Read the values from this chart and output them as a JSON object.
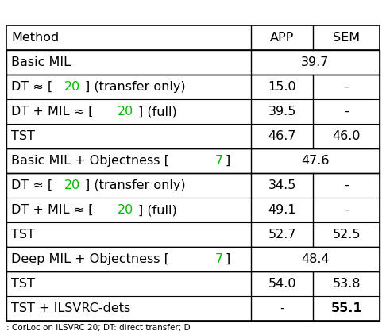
{
  "caption": ": CorLoc on ILSVRC 20; DT: direct transfer; D",
  "header": [
    "Method",
    "APP",
    "SEM"
  ],
  "groups": [
    {
      "header_row": {
        "method_parts": [
          {
            "text": "Basic MIL",
            "color": "black"
          }
        ],
        "app": "39.7",
        "colspan_app": true
      },
      "rows": [
        {
          "method_parts": [
            {
              "text": "DT ≈ [",
              "color": "black"
            },
            {
              "text": "20",
              "color": "green"
            },
            {
              "text": "] (transfer only)",
              "color": "black"
            }
          ],
          "app": "15.0",
          "sem": "-"
        },
        {
          "method_parts": [
            {
              "text": "DT + MIL ≈ [",
              "color": "black"
            },
            {
              "text": "20",
              "color": "green"
            },
            {
              "text": "] (full)",
              "color": "black"
            }
          ],
          "app": "39.5",
          "sem": "-"
        },
        {
          "method_parts": [
            {
              "text": "TST",
              "color": "black"
            }
          ],
          "app": "46.7",
          "sem": "46.0"
        }
      ]
    },
    {
      "header_row": {
        "method_parts": [
          {
            "text": "Basic MIL + Objectness [",
            "color": "black"
          },
          {
            "text": "7",
            "color": "green"
          },
          {
            "text": "]",
            "color": "black"
          }
        ],
        "app": "47.6",
        "colspan_app": true
      },
      "rows": [
        {
          "method_parts": [
            {
              "text": "DT ≈ [",
              "color": "black"
            },
            {
              "text": "20",
              "color": "green"
            },
            {
              "text": "] (transfer only)",
              "color": "black"
            }
          ],
          "app": "34.5",
          "sem": "-"
        },
        {
          "method_parts": [
            {
              "text": "DT + MIL ≈ [",
              "color": "black"
            },
            {
              "text": "20",
              "color": "green"
            },
            {
              "text": "] (full)",
              "color": "black"
            }
          ],
          "app": "49.1",
          "sem": "-"
        },
        {
          "method_parts": [
            {
              "text": "TST",
              "color": "black"
            }
          ],
          "app": "52.7",
          "sem": "52.5"
        }
      ]
    },
    {
      "header_row": {
        "method_parts": [
          {
            "text": "Deep MIL + Objectness [",
            "color": "black"
          },
          {
            "text": "7",
            "color": "green"
          },
          {
            "text": "]",
            "color": "black"
          }
        ],
        "app": "48.4",
        "colspan_app": true
      },
      "rows": [
        {
          "method_parts": [
            {
              "text": "TST",
              "color": "black"
            }
          ],
          "app": "54.0",
          "sem": "53.8"
        },
        {
          "method_parts": [
            {
              "text": "TST + ILSVRC-dets",
              "color": "black"
            }
          ],
          "app": "-",
          "sem": "55.1",
          "sem_bold": true
        }
      ]
    }
  ],
  "font_size": 11.5,
  "line_color": "#000000",
  "background_color": "#ffffff",
  "text_color": "#000000",
  "green_color": "#00bb00"
}
